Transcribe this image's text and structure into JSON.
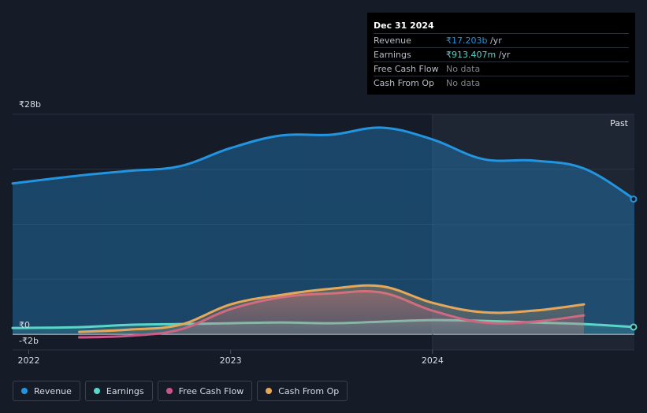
{
  "chart_data": {
    "type": "area",
    "y_tick_labels": [
      "₹28b",
      "₹0",
      "-₹2b"
    ],
    "ylim": [
      -2,
      28
    ],
    "x_tick_labels": [
      "2022",
      "2023",
      "2024"
    ],
    "x_ticks": [
      2022.0,
      2023.0,
      2024.0
    ],
    "xlim": [
      2021.92,
      2025.0
    ],
    "past_label": "Past",
    "past_start": 2024.0,
    "grid": true,
    "series": [
      {
        "name": "Revenue",
        "color": "#2394df",
        "x": [
          2021.92,
          2022.25,
          2022.5,
          2022.75,
          2023.0,
          2023.25,
          2023.5,
          2023.75,
          2024.0,
          2024.25,
          2024.5,
          2024.75,
          2025.0
        ],
        "values": [
          19.2,
          20.2,
          20.8,
          21.4,
          23.7,
          25.3,
          25.4,
          26.3,
          24.8,
          22.3,
          22.1,
          21.1,
          17.203
        ]
      },
      {
        "name": "Earnings",
        "color": "#5ad5c8",
        "x": [
          2021.92,
          2022.25,
          2022.5,
          2022.75,
          2023.0,
          2023.25,
          2023.5,
          2023.75,
          2024.0,
          2024.25,
          2024.5,
          2024.75,
          2025.0
        ],
        "values": [
          0.8,
          0.9,
          1.2,
          1.3,
          1.4,
          1.5,
          1.4,
          1.6,
          1.8,
          1.7,
          1.5,
          1.3,
          0.913
        ]
      },
      {
        "name": "Free Cash Flow",
        "color": "#c9568b",
        "x": [
          2022.25,
          2022.5,
          2022.75,
          2023.0,
          2023.25,
          2023.5,
          2023.75,
          2024.0,
          2024.25,
          2024.5,
          2024.75
        ],
        "values": [
          -0.4,
          -0.2,
          0.6,
          3.2,
          4.7,
          5.2,
          5.3,
          3.0,
          1.5,
          1.6,
          2.4
        ]
      },
      {
        "name": "Cash From Op",
        "color": "#e5a85b",
        "x": [
          2022.25,
          2022.5,
          2022.75,
          2023.0,
          2023.25,
          2023.5,
          2023.75,
          2024.0,
          2024.25,
          2024.5,
          2024.75
        ],
        "values": [
          0.3,
          0.6,
          1.2,
          3.8,
          5.0,
          5.8,
          6.1,
          4.0,
          2.8,
          3.0,
          3.8
        ]
      }
    ]
  },
  "tooltip": {
    "date": "Dec 31 2024",
    "rows": [
      {
        "label": "Revenue",
        "value": "₹17.203b",
        "unit": " /yr",
        "color": "#2394df"
      },
      {
        "label": "Earnings",
        "value": "₹913.407m",
        "unit": " /yr",
        "color": "#5ad5c8"
      },
      {
        "label": "Free Cash Flow",
        "value": "No data",
        "unit": "",
        "color": "#7d828b"
      },
      {
        "label": "Cash From Op",
        "value": "No data",
        "unit": "",
        "color": "#7d828b"
      }
    ]
  },
  "legend": [
    {
      "label": "Revenue",
      "color": "#2394df"
    },
    {
      "label": "Earnings",
      "color": "#5ad5c8"
    },
    {
      "label": "Free Cash Flow",
      "color": "#c9568b"
    },
    {
      "label": "Cash From Op",
      "color": "#e5a85b"
    }
  ]
}
